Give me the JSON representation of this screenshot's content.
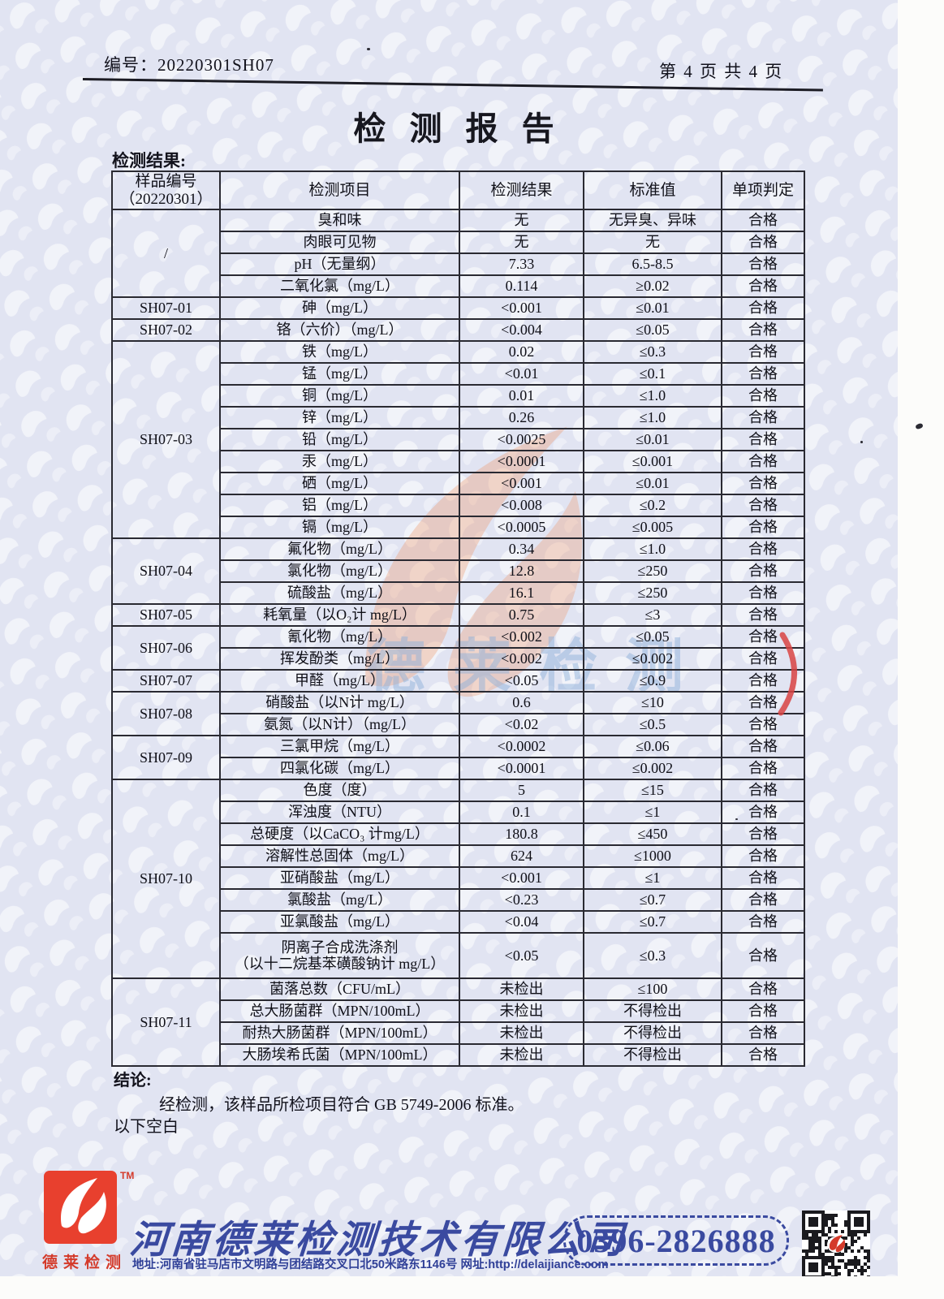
{
  "header": {
    "report_no": "编号：20220301SH07",
    "page_info": "第 4 页 共 4 页"
  },
  "title": "检 测 报 告",
  "results_label": "检测结果:",
  "table": {
    "headers": {
      "sample_id": "样品编号\n（20220301）",
      "item": "检测项目",
      "result": "检测结果",
      "standard": "标准值",
      "judgement": "单项判定"
    },
    "groups": [
      {
        "sample_id": "/",
        "rows": [
          {
            "item": "臭和味",
            "result": "无",
            "standard": "无异臭、异味",
            "judgement": "合格"
          },
          {
            "item": "肉眼可见物",
            "result": "无",
            "standard": "无",
            "judgement": "合格"
          },
          {
            "item": "pH（无量纲）",
            "result": "7.33",
            "standard": "6.5-8.5",
            "judgement": "合格"
          },
          {
            "item": "二氧化氯（mg/L）",
            "result": "0.114",
            "standard": "≥0.02",
            "judgement": "合格"
          }
        ]
      },
      {
        "sample_id": "SH07-01",
        "rows": [
          {
            "item": "砷（mg/L）",
            "result": "<0.001",
            "standard": "≤0.01",
            "judgement": "合格"
          }
        ]
      },
      {
        "sample_id": "SH07-02",
        "rows": [
          {
            "item": "铬（六价）（mg/L）",
            "result": "<0.004",
            "standard": "≤0.05",
            "judgement": "合格"
          }
        ]
      },
      {
        "sample_id": "SH07-03",
        "rows": [
          {
            "item": "铁（mg/L）",
            "result": "0.02",
            "standard": "≤0.3",
            "judgement": "合格"
          },
          {
            "item": "锰（mg/L）",
            "result": "<0.01",
            "standard": "≤0.1",
            "judgement": "合格"
          },
          {
            "item": "铜（mg/L）",
            "result": "0.01",
            "standard": "≤1.0",
            "judgement": "合格"
          },
          {
            "item": "锌（mg/L）",
            "result": "0.26",
            "standard": "≤1.0",
            "judgement": "合格"
          },
          {
            "item": "铅（mg/L）",
            "result": "<0.0025",
            "standard": "≤0.01",
            "judgement": "合格"
          },
          {
            "item": "汞（mg/L）",
            "result": "<0.0001",
            "standard": "≤0.001",
            "judgement": "合格"
          },
          {
            "item": "硒（mg/L）",
            "result": "<0.001",
            "standard": "≤0.01",
            "judgement": "合格"
          },
          {
            "item": "铝（mg/L）",
            "result": "<0.008",
            "standard": "≤0.2",
            "judgement": "合格"
          },
          {
            "item": "镉（mg/L）",
            "result": "<0.0005",
            "standard": "≤0.005",
            "judgement": "合格"
          }
        ]
      },
      {
        "sample_id": "SH07-04",
        "rows": [
          {
            "item": "氟化物（mg/L）",
            "result": "0.34",
            "standard": "≤1.0",
            "judgement": "合格"
          },
          {
            "item": "氯化物（mg/L）",
            "result": "12.8",
            "standard": "≤250",
            "judgement": "合格"
          },
          {
            "item": "硫酸盐（mg/L）",
            "result": "16.1",
            "standard": "≤250",
            "judgement": "合格"
          }
        ]
      },
      {
        "sample_id": "SH07-05",
        "rows": [
          {
            "item": "耗氧量（以O₂计 mg/L）",
            "result": "0.75",
            "standard": "≤3",
            "judgement": "合格"
          }
        ]
      },
      {
        "sample_id": "SH07-06",
        "rows": [
          {
            "item": "氰化物（mg/L）",
            "result": "<0.002",
            "standard": "≤0.05",
            "judgement": "合格"
          },
          {
            "item": "挥发酚类（mg/L）",
            "result": "<0.002",
            "standard": "≤0.002",
            "judgement": "合格"
          }
        ]
      },
      {
        "sample_id": "SH07-07",
        "rows": [
          {
            "item": "甲醛（mg/L）",
            "result": "<0.05",
            "standard": "≤0.9",
            "judgement": "合格"
          }
        ]
      },
      {
        "sample_id": "SH07-08",
        "rows": [
          {
            "item": "硝酸盐（以N计 mg/L）",
            "result": "0.6",
            "standard": "≤10",
            "judgement": "合格"
          },
          {
            "item": "氨氮（以N计）（mg/L）",
            "result": "<0.02",
            "standard": "≤0.5",
            "judgement": "合格"
          }
        ]
      },
      {
        "sample_id": "SH07-09",
        "rows": [
          {
            "item": "三氯甲烷（mg/L）",
            "result": "<0.0002",
            "standard": "≤0.06",
            "judgement": "合格"
          },
          {
            "item": "四氯化碳（mg/L）",
            "result": "<0.0001",
            "standard": "≤0.002",
            "judgement": "合格"
          }
        ]
      },
      {
        "sample_id": "SH07-10",
        "rows": [
          {
            "item": "色度（度）",
            "result": "5",
            "standard": "≤15",
            "judgement": "合格"
          },
          {
            "item": "浑浊度（NTU）",
            "result": "0.1",
            "standard": "≤1",
            "judgement": "合格"
          },
          {
            "item": "总硬度（以CaCO₃ 计mg/L）",
            "result": "180.8",
            "standard": "≤450",
            "judgement": "合格"
          },
          {
            "item": "溶解性总固体（mg/L）",
            "result": "624",
            "standard": "≤1000",
            "judgement": "合格"
          },
          {
            "item": "亚硝酸盐（mg/L）",
            "result": "<0.001",
            "standard": "≤1",
            "judgement": "合格"
          },
          {
            "item": "氯酸盐（mg/L）",
            "result": "<0.23",
            "standard": "≤0.7",
            "judgement": "合格"
          },
          {
            "item": "亚氯酸盐（mg/L）",
            "result": "<0.04",
            "standard": "≤0.7",
            "judgement": "合格"
          },
          {
            "item": "阴离子合成洗涤剂\n（以十二烷基苯磺酸钠计 mg/L）",
            "result": "<0.05",
            "standard": "≤0.3",
            "judgement": "合格",
            "tall": true
          }
        ]
      },
      {
        "sample_id": "SH07-11",
        "rows": [
          {
            "item": "菌落总数（CFU/mL）",
            "result": "未检出",
            "standard": "≤100",
            "judgement": "合格"
          },
          {
            "item": "总大肠菌群（MPN/100mL）",
            "result": "未检出",
            "standard": "不得检出",
            "judgement": "合格"
          },
          {
            "item": "耐热大肠菌群（MPN/100mL）",
            "result": "未检出",
            "standard": "不得检出",
            "judgement": "合格"
          },
          {
            "item": "大肠埃希氏菌（MPN/100mL）",
            "result": "未检出",
            "standard": "不得检出",
            "judgement": "合格"
          }
        ]
      }
    ]
  },
  "conclusion": {
    "label": "结论:",
    "text": "经检测，该样品所检项目符合 GB 5749-2006 标准。",
    "trailing": "以下空白"
  },
  "watermark": {
    "text": "德莱检测"
  },
  "footer": {
    "trademark": "TM",
    "logo_caption": "德莱检测",
    "company_name": "河南德莱检测技术有限公司",
    "address": "地址:河南省驻马店市文明路与团结路交叉口北50米路东1146号  网址:http://delaijiance.com",
    "phone": "0396-2826888"
  },
  "colors": {
    "paper_pattern_blue": "#e1e4f2",
    "brand_blue": "#3a4aa0",
    "logo_red": "#e8402e",
    "stamp_red": "#d84343",
    "watermark_orange": "#f09160",
    "watermark_blue": "#8fb1da"
  }
}
